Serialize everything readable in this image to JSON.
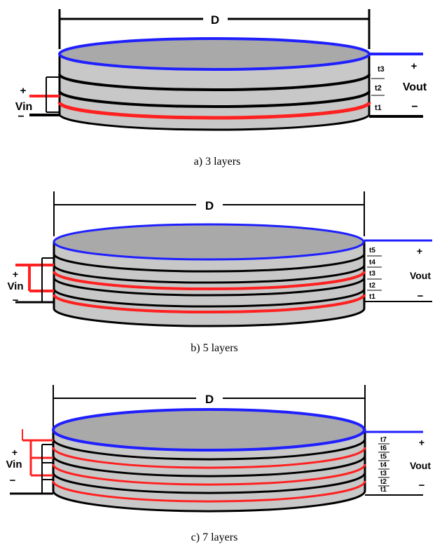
{
  "colors": {
    "outline": "#000000",
    "top_rim": "#1f1fff",
    "top_fill": "#a9a9a9",
    "body_fill": "#c8c8c8",
    "input_electrode": "#ff2020",
    "output_lead": "#1f1fff"
  },
  "panels": [
    {
      "caption": "a) 3 layers",
      "dimension_label": "D",
      "vin_plus": "+",
      "vin_label": "Vin",
      "vin_minus": "−",
      "vout_plus": "+",
      "vout_label": "Vout",
      "vout_minus": "−",
      "thickness_labels": [
        "t3",
        "t2",
        "t1"
      ],
      "layer_count": 3
    },
    {
      "caption": "b) 5 layers",
      "dimension_label": "D",
      "vin_plus": "+",
      "vin_label": "Vin",
      "vin_minus": "−",
      "vout_plus": "+",
      "vout_label": "Vout",
      "vout_minus": "−",
      "thickness_labels": [
        "t5",
        "t4",
        "t3",
        "t2",
        "t1"
      ],
      "layer_count": 5
    },
    {
      "caption": "c) 7 layers",
      "dimension_label": "D",
      "vin_plus": "+",
      "vin_label": "Vin",
      "vin_minus": "−",
      "vout_plus": "+",
      "vout_label": "Vout",
      "vout_minus": "−",
      "thickness_labels": [
        "t7",
        "t6",
        "t5",
        "t4",
        "t3",
        "t2",
        "t1"
      ],
      "layer_count": 7
    }
  ]
}
